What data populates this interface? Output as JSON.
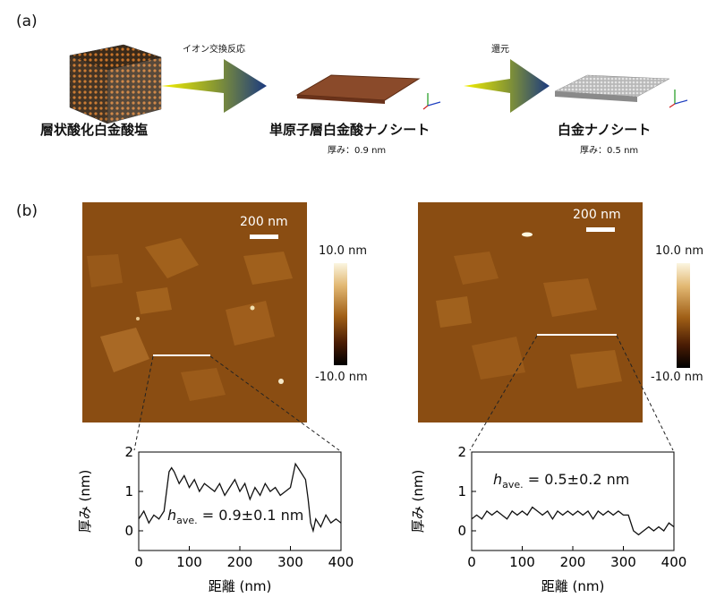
{
  "panel_a": {
    "label": "(a)",
    "step1_label": "イオン交換反応",
    "step2_label": "還元",
    "material1": "層状酸化白金酸塩",
    "material2": "単原子層白金酸ナノシート",
    "material2_thickness": "厚み：0.9 nm",
    "material3": "白金ナノシート",
    "material3_thickness": "厚み：0.5 nm",
    "axis_labels": {
      "z": "z",
      "x": "x",
      "y": "y"
    }
  },
  "panel_b": {
    "label": "(b)",
    "left": {
      "scale_bar": "200 nm",
      "colorbar_max": "10.0 nm",
      "colorbar_min": "-10.0 nm",
      "annotation_h": "h",
      "annotation_sub": "ave.",
      "annotation_value": " = 0.9±0.1 nm"
    },
    "right": {
      "scale_bar": "200 nm",
      "colorbar_max": "10.0 nm",
      "colorbar_min": "-10.0 nm",
      "annotation_h": "h",
      "annotation_sub": "ave.",
      "annotation_value": " = 0.5±0.2 nm"
    }
  },
  "colors": {
    "arrow_dark": "#1b3a80",
    "arrow_light": "#e8e600",
    "afm_base": "#8a4d12"
  },
  "chart_data": [
    {
      "type": "line",
      "xlabel": "距離 (nm)",
      "ylabel": "厚み (nm)",
      "xlim": [
        0,
        400
      ],
      "ylim": [
        -0.5,
        2
      ],
      "xticks": [
        "0",
        "100",
        "200",
        "300",
        "400"
      ],
      "yticks": [
        "0",
        "1",
        "2"
      ],
      "x": [
        0,
        10,
        20,
        30,
        40,
        50,
        55,
        60,
        65,
        70,
        80,
        90,
        100,
        110,
        120,
        130,
        140,
        150,
        160,
        170,
        180,
        190,
        200,
        210,
        220,
        230,
        240,
        250,
        260,
        270,
        280,
        290,
        300,
        305,
        310,
        315,
        320,
        330,
        335,
        340,
        345,
        350,
        360,
        370,
        380,
        390,
        400
      ],
      "y": [
        0.3,
        0.5,
        0.2,
        0.4,
        0.3,
        0.5,
        1.0,
        1.5,
        1.6,
        1.5,
        1.2,
        1.4,
        1.1,
        1.3,
        1.0,
        1.2,
        1.1,
        1.0,
        1.2,
        0.9,
        1.1,
        1.3,
        1.0,
        1.2,
        0.8,
        1.1,
        0.9,
        1.2,
        1.0,
        1.1,
        0.9,
        1.0,
        1.1,
        1.4,
        1.7,
        1.6,
        1.5,
        1.3,
        0.8,
        0.2,
        0.0,
        0.3,
        0.1,
        0.4,
        0.2,
        0.3,
        0.2
      ]
    },
    {
      "type": "line",
      "xlabel": "距離 (nm)",
      "ylabel": "厚み (nm)",
      "xlim": [
        0,
        400
      ],
      "ylim": [
        -0.5,
        2
      ],
      "xticks": [
        "0",
        "100",
        "200",
        "300",
        "400"
      ],
      "yticks": [
        "0",
        "1",
        "2"
      ],
      "x": [
        0,
        10,
        20,
        30,
        40,
        50,
        60,
        70,
        80,
        90,
        100,
        110,
        120,
        130,
        140,
        150,
        160,
        170,
        180,
        190,
        200,
        210,
        220,
        230,
        240,
        250,
        260,
        270,
        280,
        290,
        300,
        310,
        320,
        330,
        340,
        350,
        360,
        370,
        380,
        390,
        400
      ],
      "y": [
        0.3,
        0.4,
        0.3,
        0.5,
        0.4,
        0.5,
        0.4,
        0.3,
        0.5,
        0.4,
        0.5,
        0.4,
        0.6,
        0.5,
        0.4,
        0.5,
        0.3,
        0.5,
        0.4,
        0.5,
        0.4,
        0.5,
        0.4,
        0.5,
        0.3,
        0.5,
        0.4,
        0.5,
        0.4,
        0.5,
        0.4,
        0.4,
        0.0,
        -0.1,
        0.0,
        0.1,
        0.0,
        0.1,
        0.0,
        0.2,
        0.1
      ]
    }
  ]
}
